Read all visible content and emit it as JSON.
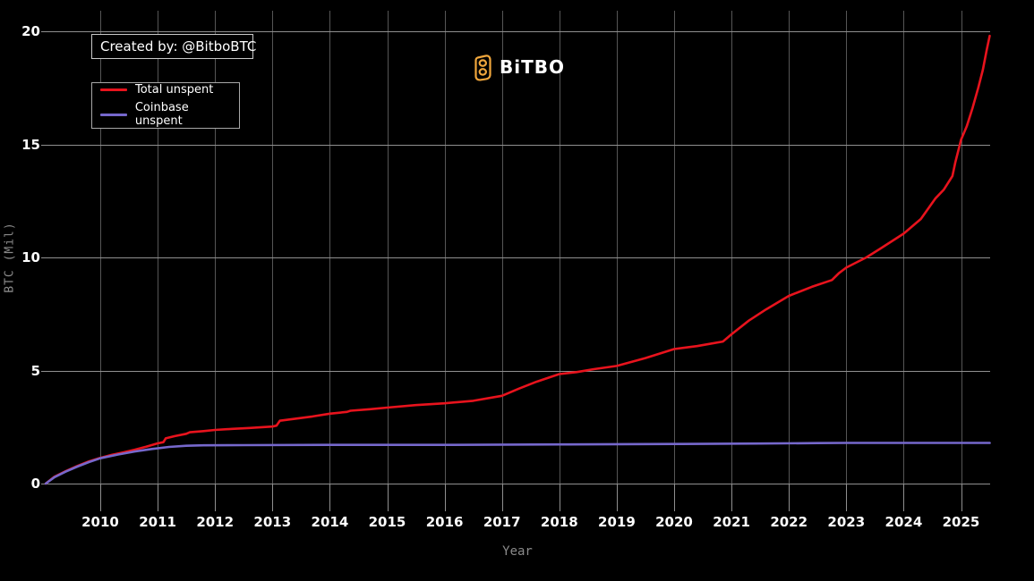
{
  "page": {
    "background": "#000000"
  },
  "header": {
    "created_by": "Created by: @BitboBTC",
    "logo": {
      "text": "BiTBO",
      "icon": "bitbo-b-icon",
      "icon_color": "#f0a63c",
      "text_color": "#ffffff"
    }
  },
  "legend": {
    "items": [
      {
        "label": "Total unspent",
        "color": "#e8131d"
      },
      {
        "label": "Coinbase unspent",
        "color": "#7668cc"
      }
    ]
  },
  "chart_data": {
    "type": "line",
    "title": "",
    "xlabel": "Year",
    "ylabel": "BTC (Mil)",
    "xlim": [
      2009.0,
      2025.55
    ],
    "ylim": [
      0,
      21
    ],
    "x_ticks": [
      2010,
      2011,
      2012,
      2013,
      2014,
      2015,
      2016,
      2017,
      2018,
      2019,
      2020,
      2021,
      2022,
      2023,
      2024,
      2025
    ],
    "y_ticks": [
      0,
      5,
      10,
      15,
      20
    ],
    "grid": true,
    "legend_position": "top-left",
    "colors": {
      "background": "#000000",
      "h_gridline": "#8f8f8f",
      "v_gridline": "#565656",
      "tick_mark": "#8f8f8f",
      "tick_text": "#ffffff",
      "axis_title_text": "#8a8a8a"
    },
    "series": [
      {
        "name": "Total unspent",
        "color": "#e8131d",
        "points": [
          [
            2009.05,
            0
          ],
          [
            2009.2,
            0.3
          ],
          [
            2009.4,
            0.55
          ],
          [
            2009.6,
            0.78
          ],
          [
            2009.8,
            0.98
          ],
          [
            2010.0,
            1.14
          ],
          [
            2010.2,
            1.27
          ],
          [
            2010.4,
            1.38
          ],
          [
            2010.6,
            1.5
          ],
          [
            2010.8,
            1.63
          ],
          [
            2011.0,
            1.78
          ],
          [
            2011.1,
            1.83
          ],
          [
            2011.14,
            2.0
          ],
          [
            2011.3,
            2.1
          ],
          [
            2011.5,
            2.2
          ],
          [
            2011.56,
            2.27
          ],
          [
            2011.8,
            2.32
          ],
          [
            2012.0,
            2.37
          ],
          [
            2012.3,
            2.42
          ],
          [
            2012.6,
            2.46
          ],
          [
            2013.0,
            2.52
          ],
          [
            2013.07,
            2.56
          ],
          [
            2013.13,
            2.78
          ],
          [
            2013.4,
            2.87
          ],
          [
            2013.7,
            2.97
          ],
          [
            2014.0,
            3.09
          ],
          [
            2014.3,
            3.17
          ],
          [
            2014.36,
            3.22
          ],
          [
            2014.7,
            3.29
          ],
          [
            2015.0,
            3.36
          ],
          [
            2015.5,
            3.47
          ],
          [
            2016.0,
            3.55
          ],
          [
            2016.5,
            3.66
          ],
          [
            2017.0,
            3.88
          ],
          [
            2017.3,
            4.2
          ],
          [
            2017.6,
            4.5
          ],
          [
            2017.9,
            4.76
          ],
          [
            2018.0,
            4.84
          ],
          [
            2018.3,
            4.93
          ],
          [
            2018.6,
            5.06
          ],
          [
            2019.0,
            5.2
          ],
          [
            2019.5,
            5.55
          ],
          [
            2020.0,
            5.95
          ],
          [
            2020.4,
            6.08
          ],
          [
            2020.85,
            6.28
          ],
          [
            2021.0,
            6.6
          ],
          [
            2021.3,
            7.2
          ],
          [
            2021.6,
            7.7
          ],
          [
            2022.0,
            8.3
          ],
          [
            2022.4,
            8.7
          ],
          [
            2022.75,
            9.0
          ],
          [
            2022.87,
            9.3
          ],
          [
            2023.0,
            9.55
          ],
          [
            2023.35,
            10.0
          ],
          [
            2023.6,
            10.4
          ],
          [
            2024.0,
            11.05
          ],
          [
            2024.3,
            11.7
          ],
          [
            2024.55,
            12.6
          ],
          [
            2024.7,
            13.0
          ],
          [
            2024.85,
            13.6
          ],
          [
            2024.9,
            14.2
          ],
          [
            2025.0,
            15.2
          ],
          [
            2025.1,
            15.8
          ],
          [
            2025.2,
            16.6
          ],
          [
            2025.3,
            17.5
          ],
          [
            2025.38,
            18.3
          ],
          [
            2025.45,
            19.2
          ],
          [
            2025.5,
            19.8
          ]
        ]
      },
      {
        "name": "Coinbase unspent",
        "color": "#7668cc",
        "points": [
          [
            2009.05,
            0
          ],
          [
            2009.2,
            0.28
          ],
          [
            2009.4,
            0.53
          ],
          [
            2009.6,
            0.75
          ],
          [
            2009.8,
            0.95
          ],
          [
            2010.0,
            1.12
          ],
          [
            2010.3,
            1.28
          ],
          [
            2010.6,
            1.42
          ],
          [
            2010.9,
            1.53
          ],
          [
            2011.2,
            1.62
          ],
          [
            2011.5,
            1.67
          ],
          [
            2011.8,
            1.69
          ],
          [
            2012.5,
            1.7
          ],
          [
            2014.0,
            1.71
          ],
          [
            2016.0,
            1.71
          ],
          [
            2018.0,
            1.73
          ],
          [
            2020.0,
            1.75
          ],
          [
            2021.5,
            1.77
          ],
          [
            2022.5,
            1.79
          ],
          [
            2023.0,
            1.8
          ],
          [
            2025.5,
            1.8
          ]
        ]
      }
    ]
  }
}
